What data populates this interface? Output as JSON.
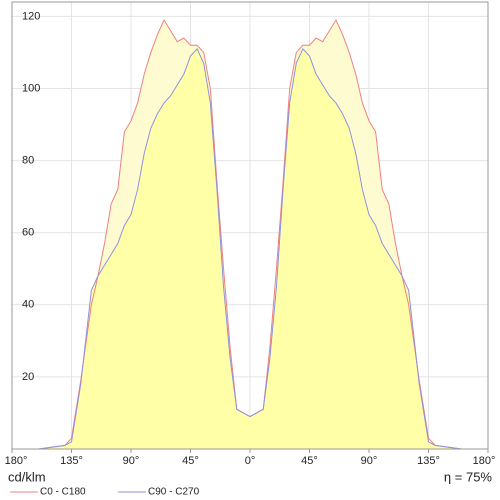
{
  "chart_data": {
    "type": "area",
    "y_axis_label": "cd/klm",
    "annotation": "η = 75%",
    "x": [
      -180,
      -160,
      -140,
      -135,
      -128,
      -120,
      -115,
      -110,
      -105,
      -100,
      -95,
      -90,
      -85,
      -80,
      -75,
      -70,
      -65,
      -60,
      -55,
      -50,
      -45,
      -40,
      -35,
      -30,
      -25,
      -20,
      -15,
      -10,
      -5,
      0,
      5,
      10,
      15,
      20,
      25,
      30,
      35,
      40,
      45,
      50,
      55,
      60,
      65,
      70,
      75,
      80,
      85,
      90,
      95,
      100,
      105,
      110,
      115,
      120,
      128,
      135,
      140,
      160,
      180
    ],
    "series": [
      {
        "name": "C0 - C180",
        "color": "#f08080",
        "values": [
          0,
          0,
          1,
          3,
          19,
          40,
          48,
          57,
          68,
          72,
          88,
          91,
          96,
          104,
          110,
          115,
          119,
          116,
          113,
          114,
          112,
          112,
          110,
          100,
          74,
          50,
          28,
          11,
          10,
          9,
          10,
          11,
          28,
          50,
          74,
          100,
          110,
          112,
          112,
          114,
          113,
          116,
          119,
          115,
          110,
          104,
          96,
          91,
          88,
          72,
          68,
          57,
          48,
          40,
          19,
          3,
          1,
          0,
          0
        ]
      },
      {
        "name": "C90 - C270",
        "color": "#9090e0",
        "values": [
          0,
          0,
          1,
          2,
          18,
          44,
          48,
          51,
          54,
          57,
          62,
          65,
          72,
          82,
          89,
          93,
          96,
          98,
          101,
          104,
          109,
          111,
          107,
          96,
          72,
          45,
          25,
          11,
          10,
          9,
          10,
          11,
          25,
          45,
          72,
          96,
          107,
          111,
          109,
          104,
          101,
          98,
          96,
          93,
          89,
          82,
          72,
          65,
          62,
          57,
          54,
          51,
          48,
          44,
          18,
          2,
          1,
          0,
          0
        ]
      }
    ],
    "xlim": [
      -180,
      180
    ],
    "xticks": [
      {
        "value": -180,
        "label": "180°"
      },
      {
        "value": -135,
        "label": "135°"
      },
      {
        "value": -90,
        "label": "90°"
      },
      {
        "value": -45,
        "label": "45°"
      },
      {
        "value": 0,
        "label": "0°"
      },
      {
        "value": 45,
        "label": "45°"
      },
      {
        "value": 90,
        "label": "90°"
      },
      {
        "value": 135,
        "label": "135°"
      },
      {
        "value": 180,
        "label": "180°"
      }
    ],
    "ylim": [
      0,
      124
    ],
    "yticks": [
      20,
      40,
      60,
      80,
      100,
      120
    ],
    "grid": true
  }
}
